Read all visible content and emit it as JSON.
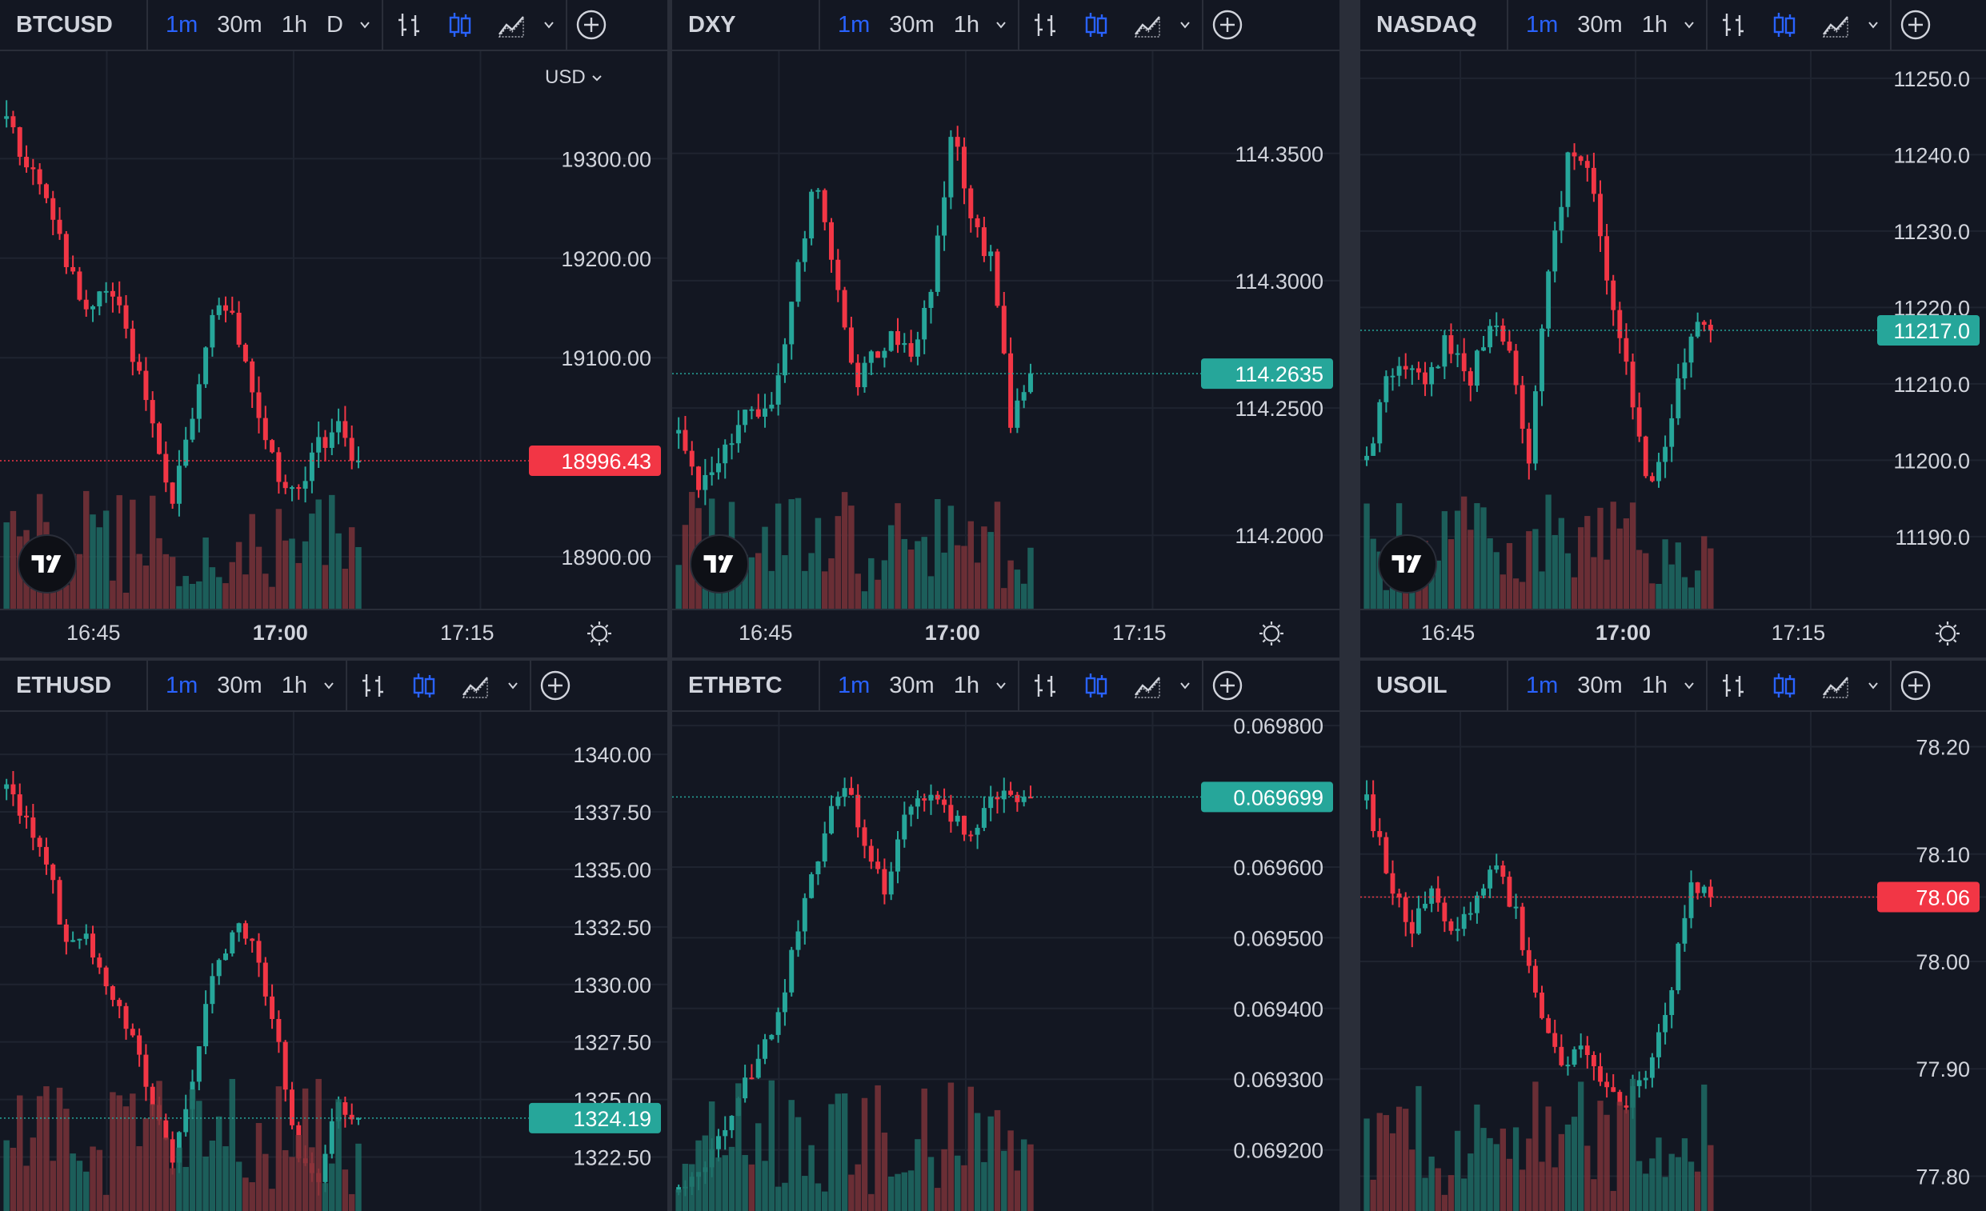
{
  "layout": {
    "columns": 3,
    "rows": 2
  },
  "toolbar": {
    "intervals": [
      "1m",
      "30m",
      "1h"
    ],
    "active_interval": "1m",
    "icons": [
      "bars-style-icon",
      "candles-style-icon",
      "area-style-icon"
    ]
  },
  "colors": {
    "background": "#131722",
    "up": "#26a69a",
    "down": "#f23645",
    "up_volume": "#1e6b64",
    "down_volume": "#7a3238",
    "accent": "#2962ff",
    "text": "#d1d4dc"
  },
  "panels": [
    {
      "symbol": "BTCUSD",
      "extra_interval": "D",
      "currency_selector": "USD",
      "price_labels": [
        "19300.00",
        "19200.00",
        "19100.00",
        "18900.00"
      ],
      "last_price": "18996.43",
      "last_direction": "down",
      "time_labels": [
        "16:45",
        "17:00",
        "17:15"
      ],
      "has_settings_icon": true,
      "chart_data": {
        "type": "candlestick",
        "ylim": [
          18855,
          19400
        ],
        "x_first": "16:45",
        "x_last": "17:15",
        "last_price": 18996.43,
        "trend": [
          19340,
          19290,
          19260,
          19190,
          19150,
          19180,
          19110,
          19030,
          18960,
          19050,
          19150,
          19140,
          19060,
          18990,
          18960,
          19010,
          19030,
          18996
        ]
      }
    },
    {
      "symbol": "DXY",
      "price_labels": [
        "114.3500",
        "114.3000",
        "114.2500",
        "114.2000"
      ],
      "last_price": "114.2635",
      "last_direction": "up",
      "time_labels": [
        "16:45",
        "17:00",
        "17:15"
      ],
      "has_settings_icon": true,
      "chart_data": {
        "type": "candlestick",
        "ylim": [
          114.174,
          114.387
        ],
        "x_first": "16:45",
        "x_last": "17:15",
        "last_price": 114.2635,
        "trend": [
          114.24,
          114.22,
          114.225,
          114.245,
          114.25,
          114.255,
          114.3,
          114.34,
          114.3,
          114.26,
          114.27,
          114.28,
          114.27,
          114.3,
          114.36,
          114.32,
          114.31,
          114.245,
          114.2635
        ]
      }
    },
    {
      "symbol": "NASDAQ",
      "price_labels": [
        "11250.0",
        "11240.0",
        "11230.0",
        "11220.0",
        "11210.0",
        "11200.0",
        "11190.0"
      ],
      "last_price": "11217.0",
      "last_direction": "up",
      "time_labels": [
        "16:45",
        "17:00",
        "17:15"
      ],
      "has_settings_icon": true,
      "chart_data": {
        "type": "candlestick",
        "ylim": [
          11181.5,
          11252.5
        ],
        "x_first": "16:45",
        "x_last": "17:15",
        "last_price": 11217.0,
        "trend": [
          11200,
          11210,
          11213,
          11210,
          11216,
          11210,
          11218,
          11215,
          11200,
          11225,
          11240,
          11238,
          11222,
          11210,
          11195,
          11205,
          11217,
          11217
        ]
      }
    },
    {
      "symbol": "ETHUSD",
      "price_labels": [
        "1340.00",
        "1337.50",
        "1335.00",
        "1332.50",
        "1330.00",
        "1327.50",
        "1325.00",
        "1322.50"
      ],
      "last_price": "1324.19",
      "last_direction": "up",
      "chart_data": {
        "type": "candlestick",
        "ylim": [
          1320.5,
          1341.5
        ],
        "x_first": "",
        "x_last": "",
        "last_price": 1324.19,
        "trend": [
          1338.5,
          1337.0,
          1335.0,
          1331.5,
          1332.0,
          1329.5,
          1328.0,
          1325.0,
          1322.0,
          1326.0,
          1330.5,
          1332.5,
          1331.5,
          1328.0,
          1323.0,
          1321.5,
          1325.0,
          1324.19
        ]
      }
    },
    {
      "symbol": "ETHBTC",
      "price_labels": [
        "0.069800",
        "0.069600",
        "0.069500",
        "0.069400",
        "0.069300",
        "0.069200"
      ],
      "last_price": "0.069699",
      "last_direction": "up",
      "chart_data": {
        "type": "candlestick",
        "ylim": [
          0.069125,
          0.069808
        ],
        "x_first": "",
        "x_last": "",
        "last_price": 0.069699,
        "trend": [
          0.06914,
          0.06917,
          0.06921,
          0.06928,
          0.06933,
          0.06942,
          0.06954,
          0.06965,
          0.06972,
          0.06964,
          0.06956,
          0.06969,
          0.0697,
          0.06967,
          0.06965,
          0.06969,
          0.0697,
          0.069699
        ]
      }
    },
    {
      "symbol": "USOIL",
      "price_labels": [
        "78.20",
        "78.10",
        "78.06",
        "78.00",
        "77.90",
        "77.80"
      ],
      "last_price": "78.06",
      "last_direction": "down",
      "chart_data": {
        "type": "candlestick",
        "ylim": [
          77.775,
          78.225
        ],
        "x_first": "",
        "x_last": "",
        "last_price": 78.06,
        "trend": [
          78.15,
          78.08,
          78.03,
          78.06,
          78.02,
          78.05,
          78.09,
          78.04,
          77.95,
          77.9,
          77.93,
          77.88,
          77.86,
          77.9,
          77.95,
          78.07,
          78.06
        ]
      }
    }
  ]
}
